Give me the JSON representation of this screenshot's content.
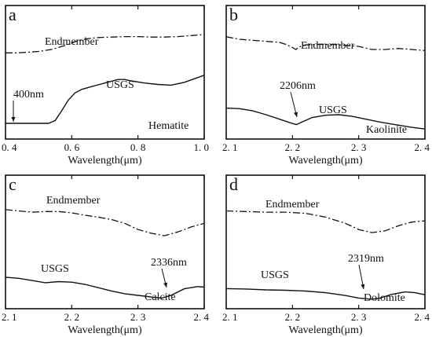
{
  "chart_data": [
    {
      "type": "line",
      "panel_label": "a",
      "mineral": "Hematite",
      "xlabel": "Wavelength(μm)",
      "xlim": [
        0.4,
        1.0
      ],
      "xticks": [
        0.4,
        0.6,
        0.8,
        1.0
      ],
      "xtick_labels": [
        "0. 4",
        "0. 6",
        "0. 8",
        "1. 0"
      ],
      "ylim": [
        0,
        1
      ],
      "annotation": {
        "text": "400nm",
        "x": 0.4,
        "y": 0.0
      },
      "series": [
        {
          "name": "Endmember",
          "style": "dash-dot",
          "x": [
            0.4,
            0.43,
            0.46,
            0.5,
            0.54,
            0.58,
            0.6,
            0.62,
            0.65,
            0.68,
            0.72,
            0.76,
            0.8,
            0.84,
            0.88,
            0.92,
            0.96,
            1.0
          ],
          "y": [
            0.55,
            0.55,
            0.56,
            0.58,
            0.62,
            0.7,
            0.75,
            0.8,
            0.84,
            0.86,
            0.87,
            0.88,
            0.88,
            0.87,
            0.87,
            0.88,
            0.9,
            0.92
          ]
        },
        {
          "name": "USGS",
          "style": "solid",
          "x": [
            0.4,
            0.45,
            0.5,
            0.53,
            0.55,
            0.57,
            0.59,
            0.61,
            0.63,
            0.66,
            0.7,
            0.74,
            0.76,
            0.78,
            0.82,
            0.86,
            0.9,
            0.94,
            0.97,
            1.0
          ],
          "y": [
            0.0,
            0.0,
            0.0,
            0.0,
            0.04,
            0.18,
            0.33,
            0.43,
            0.48,
            0.52,
            0.57,
            0.62,
            0.62,
            0.6,
            0.57,
            0.55,
            0.54,
            0.58,
            0.63,
            0.68
          ]
        }
      ]
    },
    {
      "type": "line",
      "panel_label": "b",
      "mineral": "Kaolinite",
      "xlabel": "Wavelength(μm)",
      "xlim": [
        2.1,
        2.4
      ],
      "xticks": [
        2.1,
        2.2,
        2.3,
        2.4
      ],
      "xtick_labels": [
        "2. 1",
        "2. 2",
        "2. 3",
        "2. 4"
      ],
      "ylim": [
        0,
        1
      ],
      "annotation": {
        "text": "2206nm",
        "x": 2.206,
        "y": 0.12
      },
      "series": [
        {
          "name": "Endmember",
          "style": "dash-dot",
          "x": [
            2.1,
            2.12,
            2.14,
            2.16,
            2.18,
            2.19,
            2.2,
            2.205,
            2.21,
            2.22,
            2.24,
            2.26,
            2.28,
            2.3,
            2.32,
            2.34,
            2.36,
            2.38,
            2.4
          ],
          "y": [
            0.85,
            0.8,
            0.78,
            0.76,
            0.74,
            0.7,
            0.64,
            0.6,
            0.65,
            0.69,
            0.7,
            0.7,
            0.68,
            0.66,
            0.6,
            0.6,
            0.62,
            0.6,
            0.58
          ]
        },
        {
          "name": "USGS",
          "style": "solid",
          "x": [
            2.1,
            2.12,
            2.14,
            2.16,
            2.18,
            2.19,
            2.2,
            2.206,
            2.215,
            2.23,
            2.25,
            2.27,
            2.29,
            2.31,
            2.33,
            2.35,
            2.38,
            2.4
          ],
          "y": [
            0.42,
            0.41,
            0.37,
            0.3,
            0.22,
            0.18,
            0.14,
            0.12,
            0.17,
            0.25,
            0.29,
            0.3,
            0.27,
            0.22,
            0.17,
            0.13,
            0.07,
            0.04
          ]
        }
      ]
    },
    {
      "type": "line",
      "panel_label": "c",
      "mineral": "Calcite",
      "xlabel": "Wavelength(μm)",
      "xlim": [
        2.1,
        2.4
      ],
      "xticks": [
        2.1,
        2.2,
        2.3,
        2.4
      ],
      "xtick_labels": [
        "2. 1",
        "2. 2",
        "2. 3",
        "2. 4"
      ],
      "ylim": [
        0,
        1
      ],
      "annotation": {
        "text": "2336nm",
        "x": 2.336,
        "y": 0.05
      },
      "series": [
        {
          "name": "Endmember",
          "style": "dash-dot",
          "x": [
            2.1,
            2.12,
            2.14,
            2.16,
            2.18,
            2.2,
            2.22,
            2.24,
            2.26,
            2.28,
            2.3,
            2.32,
            2.34,
            2.36,
            2.38,
            2.4
          ],
          "y": [
            0.9,
            0.88,
            0.86,
            0.87,
            0.87,
            0.85,
            0.81,
            0.78,
            0.74,
            0.68,
            0.58,
            0.52,
            0.48,
            0.54,
            0.62,
            0.68
          ]
        },
        {
          "name": "USGS",
          "style": "solid",
          "x": [
            2.1,
            2.12,
            2.14,
            2.16,
            2.18,
            2.2,
            2.22,
            2.24,
            2.26,
            2.28,
            2.3,
            2.32,
            2.336,
            2.35,
            2.37,
            2.39,
            2.4
          ],
          "y": [
            0.43,
            0.41,
            0.37,
            0.33,
            0.35,
            0.34,
            0.3,
            0.24,
            0.18,
            0.13,
            0.1,
            0.07,
            0.05,
            0.1,
            0.22,
            0.26,
            0.25
          ]
        }
      ]
    },
    {
      "type": "line",
      "panel_label": "d",
      "mineral": "Dolomite",
      "xlabel": "Wavelength(μm)",
      "xlim": [
        2.1,
        2.4
      ],
      "xticks": [
        2.1,
        2.2,
        2.3,
        2.4
      ],
      "xtick_labels": [
        "2. 1",
        "2. 2",
        "2. 3",
        "2. 4"
      ],
      "ylim": [
        0,
        1
      ],
      "annotation": {
        "text": "2319nm",
        "x": 2.319,
        "y": 0.04
      },
      "series": [
        {
          "name": "Endmember",
          "style": "dash-dot",
          "x": [
            2.1,
            2.13,
            2.16,
            2.19,
            2.22,
            2.25,
            2.28,
            2.3,
            2.32,
            2.34,
            2.36,
            2.38,
            2.4
          ],
          "y": [
            0.88,
            0.87,
            0.86,
            0.86,
            0.84,
            0.78,
            0.68,
            0.58,
            0.53,
            0.56,
            0.64,
            0.7,
            0.72
          ]
        },
        {
          "name": "USGS",
          "style": "solid",
          "x": [
            2.1,
            2.13,
            2.16,
            2.19,
            2.22,
            2.25,
            2.28,
            2.3,
            2.319,
            2.33,
            2.35,
            2.37,
            2.385,
            2.4
          ],
          "y": [
            0.3,
            0.29,
            0.27,
            0.26,
            0.24,
            0.2,
            0.13,
            0.07,
            0.04,
            0.06,
            0.16,
            0.22,
            0.2,
            0.15
          ]
        }
      ]
    }
  ]
}
